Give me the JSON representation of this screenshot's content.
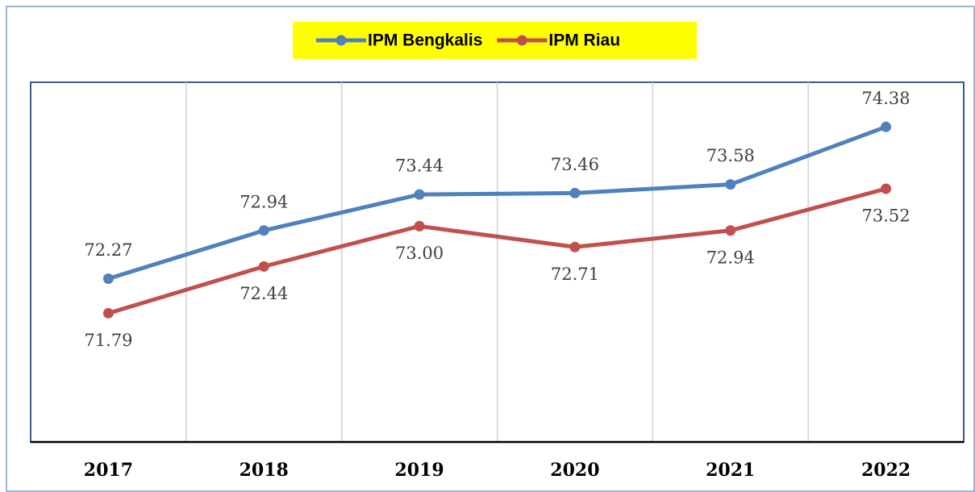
{
  "chart_data": {
    "type": "line",
    "categories": [
      "2017",
      "2018",
      "2019",
      "2020",
      "2021",
      "2022"
    ],
    "series": [
      {
        "name": "IPM Bengkalis",
        "color": "#4f81bd",
        "values": [
          72.27,
          72.94,
          73.44,
          73.46,
          73.58,
          74.38
        ],
        "value_labels": [
          "72.27",
          "72.94",
          "73.44",
          "73.46",
          "73.58",
          "74.38"
        ]
      },
      {
        "name": "IPM Riau",
        "color": "#c0504d",
        "values": [
          71.79,
          72.44,
          73.0,
          72.71,
          72.94,
          73.52
        ],
        "value_labels": [
          "71.79",
          "72.44",
          "73.00",
          "72.71",
          "72.94",
          "73.52"
        ]
      }
    ],
    "ylim": [
      70,
      75
    ],
    "grid": true,
    "legend": "top",
    "legend_background": "#ffff00"
  }
}
